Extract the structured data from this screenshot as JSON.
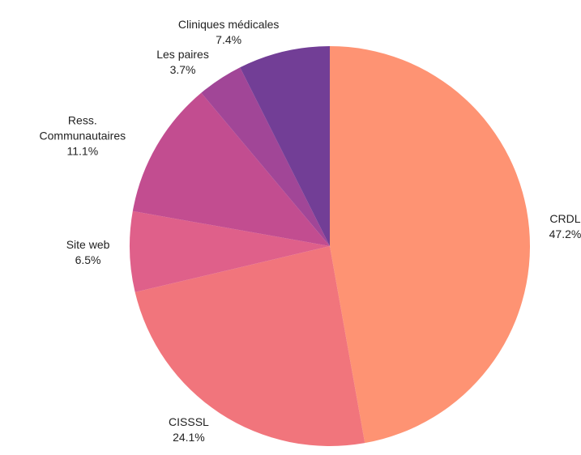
{
  "chart_data": {
    "type": "pie",
    "categories": [
      "CRDL",
      "CISSSL",
      "Site web",
      "Ress. Communautaires",
      "Les paires",
      "Cliniques médicales"
    ],
    "values": [
      47.2,
      24.1,
      6.5,
      11.1,
      3.7,
      7.4
    ],
    "value_labels": [
      "47.2%",
      "24.1%",
      "6.5%",
      "11.1%",
      "3.7%",
      "7.4%"
    ],
    "colors": [
      "#fe9373",
      "#f1757c",
      "#df608a",
      "#c24d90",
      "#a14697",
      "#723e96"
    ]
  }
}
